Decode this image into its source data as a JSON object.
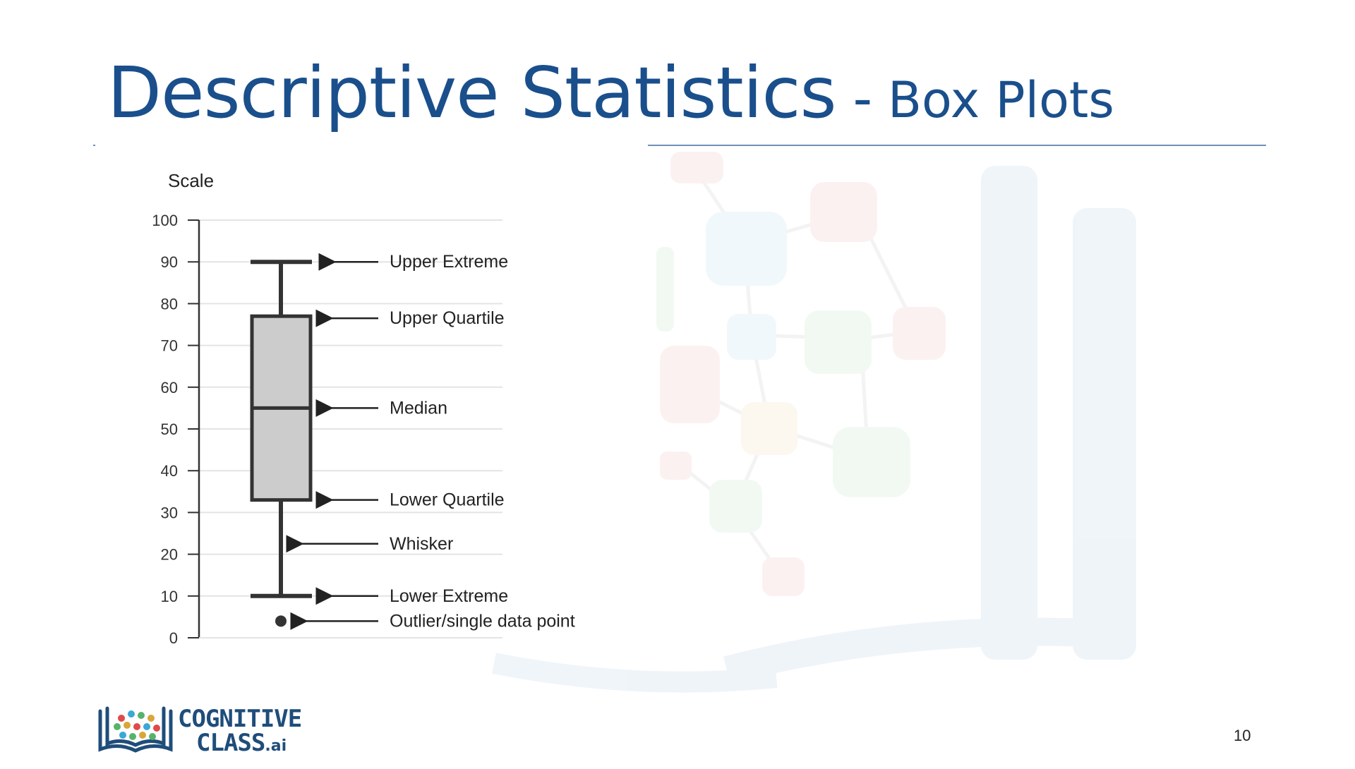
{
  "slide": {
    "title_main": "Descriptive Statistics",
    "title_separator": "-",
    "title_sub": "Box Plots",
    "page_number": "10"
  },
  "brand": {
    "name_line1": "COGNITIVE",
    "name_line2": "CLASS",
    "name_suffix": ".ai",
    "icon": "open-book-network-icon"
  },
  "colors": {
    "title": "#1a4f8c",
    "box_fill": "#cccccc",
    "stroke": "#333333",
    "grid": "#e4e4e4"
  },
  "chart_data": {
    "type": "box",
    "ylabel": "Scale",
    "ylim": [
      0,
      100
    ],
    "y_ticks": [
      0,
      10,
      20,
      30,
      40,
      50,
      60,
      70,
      80,
      90,
      100
    ],
    "grid": true,
    "box": {
      "lower_extreme": 10,
      "lower_quartile": 33,
      "median": 55,
      "upper_quartile": 77,
      "upper_extreme": 90,
      "outlier": 4
    },
    "annotations": [
      {
        "label": "Upper Extreme",
        "value": 90
      },
      {
        "label": "Upper Quartile",
        "value": 76.5
      },
      {
        "label": "Median",
        "value": 55
      },
      {
        "label": "Lower Quartile",
        "value": 33
      },
      {
        "label": "Whisker",
        "value": 22.5
      },
      {
        "label": "Lower Extreme",
        "value": 10
      },
      {
        "label": "Outlier/single data point",
        "value": 4
      }
    ]
  }
}
